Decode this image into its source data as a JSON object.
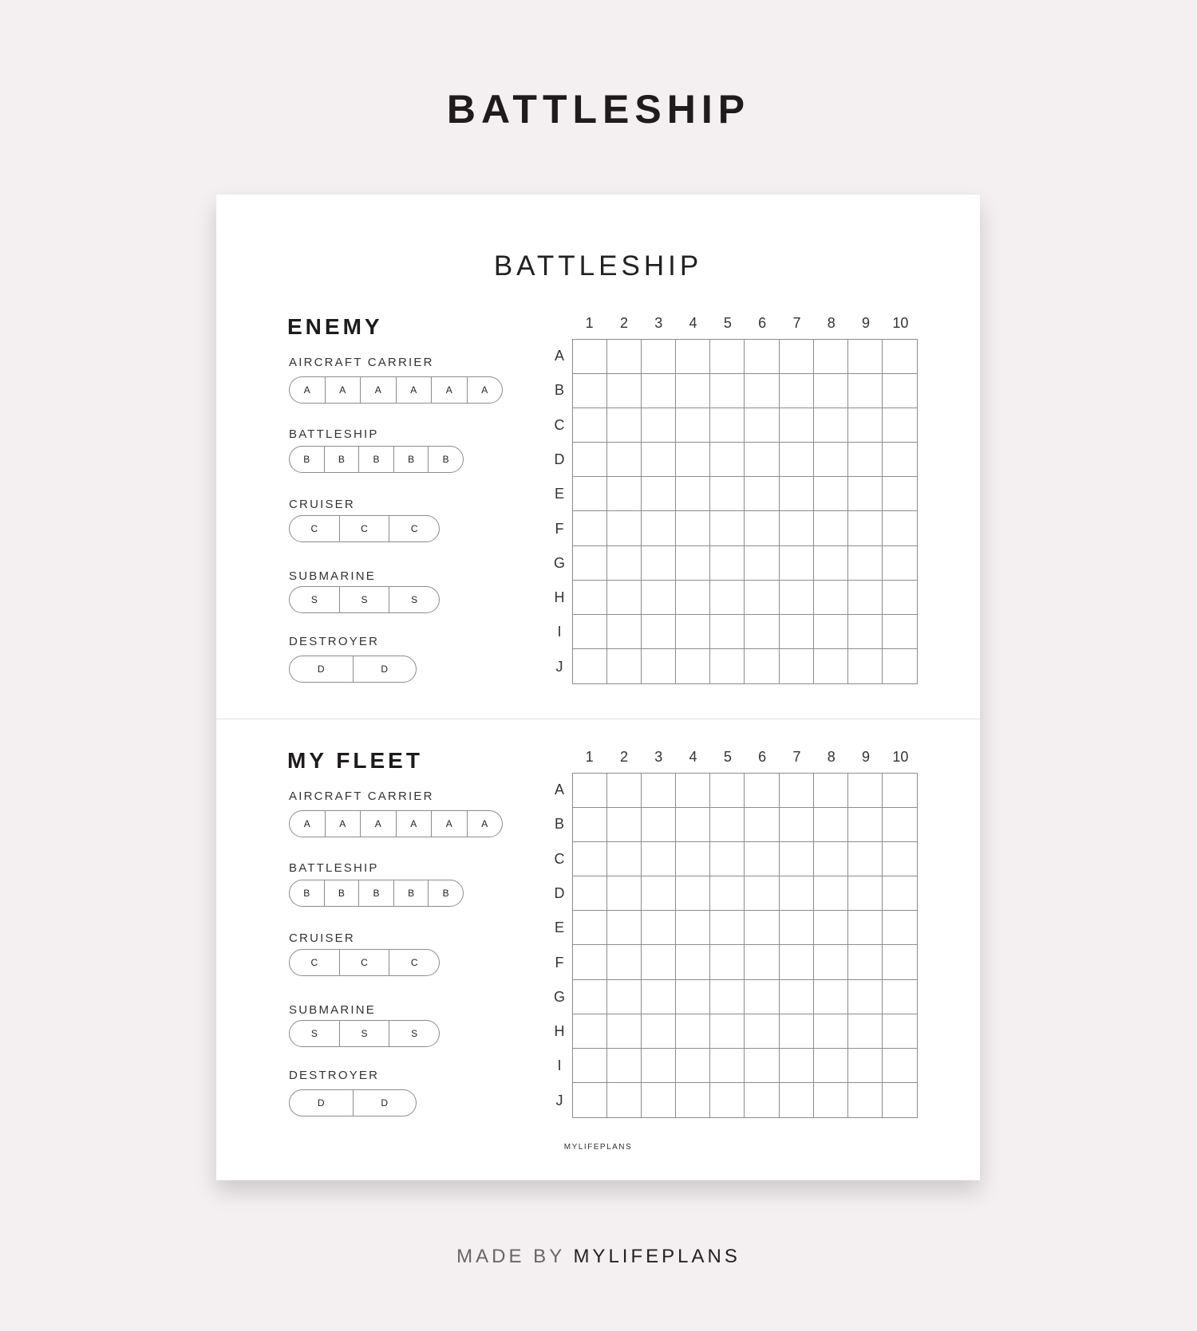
{
  "header": {
    "title": "BATTLESHIP"
  },
  "card": {
    "title": "BATTLESHIP",
    "footer": "MYLIFEPLANS",
    "columns": [
      "1",
      "2",
      "3",
      "4",
      "5",
      "6",
      "7",
      "8",
      "9",
      "10"
    ],
    "rows": [
      "A",
      "B",
      "C",
      "D",
      "E",
      "F",
      "G",
      "H",
      "I",
      "J"
    ],
    "sections": [
      {
        "heading": "ENEMY",
        "ships": [
          {
            "name": "AIRCRAFT CARRIER",
            "cells": [
              "A",
              "A",
              "A",
              "A",
              "A",
              "A"
            ]
          },
          {
            "name": "BATTLESHIP",
            "cells": [
              "B",
              "B",
              "B",
              "B",
              "B"
            ]
          },
          {
            "name": "CRUISER",
            "cells": [
              "C",
              "C",
              "C"
            ]
          },
          {
            "name": "SUBMARINE",
            "cells": [
              "S",
              "S",
              "S"
            ]
          },
          {
            "name": "DESTROYER",
            "cells": [
              "D",
              "D"
            ]
          }
        ]
      },
      {
        "heading": "MY FLEET",
        "ships": [
          {
            "name": "AIRCRAFT CARRIER",
            "cells": [
              "A",
              "A",
              "A",
              "A",
              "A",
              "A"
            ]
          },
          {
            "name": "BATTLESHIP",
            "cells": [
              "B",
              "B",
              "B",
              "B",
              "B"
            ]
          },
          {
            "name": "CRUISER",
            "cells": [
              "C",
              "C",
              "C"
            ]
          },
          {
            "name": "SUBMARINE",
            "cells": [
              "S",
              "S",
              "S"
            ]
          },
          {
            "name": "DESTROYER",
            "cells": [
              "D",
              "D"
            ]
          }
        ]
      }
    ]
  },
  "footer": {
    "made_by": "MADE BY",
    "brand": "MYLIFEPLANS"
  },
  "colors": {
    "background": "#f4eff1",
    "card": "#ffffff",
    "grid_line": "#8c8c8c",
    "text": "#1e1b1c"
  }
}
